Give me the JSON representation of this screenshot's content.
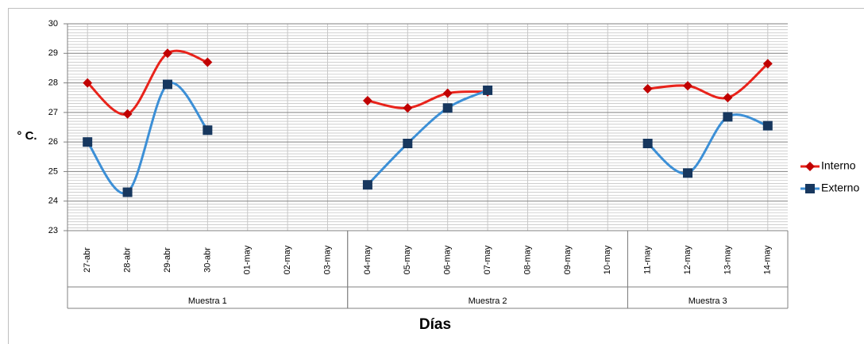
{
  "chart_data": {
    "type": "line",
    "y_label": "° C.",
    "x_label": "Días",
    "categories": [
      "27-abr",
      "28-abr",
      "29-abr",
      "30-abr",
      "01-may",
      "02-may",
      "03-may",
      "04-may",
      "05-may",
      "06-may",
      "07-may",
      "08-may",
      "09-may",
      "10-may",
      "11-may",
      "12-may",
      "13-may",
      "14-may"
    ],
    "groups": [
      {
        "label": "Muestra 1",
        "first": "27-abr",
        "last": "03-may"
      },
      {
        "label": "Muestra 2",
        "first": "04-may",
        "last": "10-may"
      },
      {
        "label": "Muestra 3",
        "first": "11-may",
        "last": "14-may"
      }
    ],
    "series": [
      {
        "name": "Interno",
        "color": "#e8231b",
        "marker_color": "#c00000",
        "marker": "diamond",
        "smooth": true,
        "values": [
          28.0,
          26.95,
          29.0,
          28.7,
          null,
          null,
          null,
          27.4,
          27.15,
          27.65,
          27.7,
          null,
          null,
          null,
          27.8,
          27.9,
          27.5,
          28.65
        ]
      },
      {
        "name": "Externo",
        "color": "#3c8fd6",
        "marker_color": "#17375e",
        "marker": "square",
        "smooth": true,
        "values": [
          26.0,
          24.3,
          27.95,
          26.4,
          null,
          null,
          null,
          24.55,
          25.95,
          27.15,
          27.75,
          null,
          null,
          null,
          25.95,
          24.95,
          26.85,
          26.55
        ]
      }
    ],
    "ylim": [
      23,
      30
    ],
    "yticks": [
      23,
      24,
      25,
      26,
      27,
      28,
      29,
      30
    ],
    "grid": true,
    "minor_grid": true,
    "legend": "right"
  }
}
